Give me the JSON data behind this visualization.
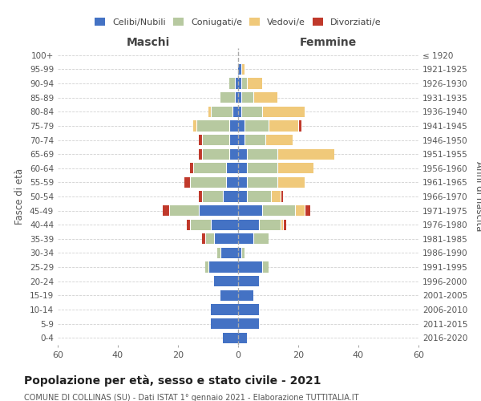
{
  "age_groups": [
    "0-4",
    "5-9",
    "10-14",
    "15-19",
    "20-24",
    "25-29",
    "30-34",
    "35-39",
    "40-44",
    "45-49",
    "50-54",
    "55-59",
    "60-64",
    "65-69",
    "70-74",
    "75-79",
    "80-84",
    "85-89",
    "90-94",
    "95-99",
    "100+"
  ],
  "birth_years": [
    "2016-2020",
    "2011-2015",
    "2006-2010",
    "2001-2005",
    "1996-2000",
    "1991-1995",
    "1986-1990",
    "1981-1985",
    "1976-1980",
    "1971-1975",
    "1966-1970",
    "1961-1965",
    "1956-1960",
    "1951-1955",
    "1946-1950",
    "1941-1945",
    "1936-1940",
    "1931-1935",
    "1926-1930",
    "1921-1925",
    "≤ 1920"
  ],
  "maschi": {
    "celibi": [
      5,
      9,
      9,
      6,
      8,
      10,
      6,
      8,
      9,
      13,
      5,
      4,
      4,
      3,
      3,
      3,
      2,
      1,
      1,
      0,
      0
    ],
    "coniugati": [
      0,
      0,
      0,
      0,
      0,
      1,
      1,
      3,
      7,
      10,
      7,
      12,
      11,
      9,
      9,
      11,
      7,
      5,
      2,
      0,
      0
    ],
    "vedovi": [
      0,
      0,
      0,
      0,
      0,
      0,
      0,
      0,
      0,
      0,
      0,
      0,
      0,
      0,
      0,
      1,
      1,
      0,
      0,
      0,
      0
    ],
    "divorziati": [
      0,
      0,
      0,
      0,
      0,
      0,
      0,
      1,
      1,
      2,
      1,
      2,
      1,
      1,
      1,
      0,
      0,
      0,
      0,
      0,
      0
    ]
  },
  "femmine": {
    "nubili": [
      3,
      7,
      7,
      5,
      7,
      8,
      1,
      5,
      7,
      8,
      3,
      3,
      3,
      3,
      2,
      2,
      1,
      1,
      1,
      1,
      0
    ],
    "coniugate": [
      0,
      0,
      0,
      0,
      0,
      2,
      1,
      5,
      7,
      11,
      8,
      10,
      10,
      10,
      7,
      8,
      7,
      4,
      2,
      0,
      0
    ],
    "vedove": [
      0,
      0,
      0,
      0,
      0,
      0,
      0,
      0,
      1,
      3,
      3,
      9,
      12,
      19,
      9,
      10,
      14,
      8,
      5,
      1,
      0
    ],
    "divorziate": [
      0,
      0,
      0,
      0,
      0,
      0,
      0,
      0,
      1,
      2,
      1,
      0,
      0,
      0,
      0,
      1,
      0,
      0,
      0,
      0,
      0
    ]
  },
  "colors": {
    "celibi": "#4472c4",
    "coniugati": "#b7c9a0",
    "vedovi": "#f0c97a",
    "divorziati": "#c0392b"
  },
  "xlim": 60,
  "title": "Popolazione per età, sesso e stato civile - 2021",
  "subtitle": "COMUNE DI COLLINAS (SU) - Dati ISTAT 1° gennaio 2021 - Elaborazione TUTTITALIA.IT",
  "ylabel_left": "Fasce di età",
  "ylabel_right": "Anni di nascita",
  "xlabel_left": "Maschi",
  "xlabel_right": "Femmine",
  "background_color": "#ffffff",
  "grid_color": "#cccccc"
}
